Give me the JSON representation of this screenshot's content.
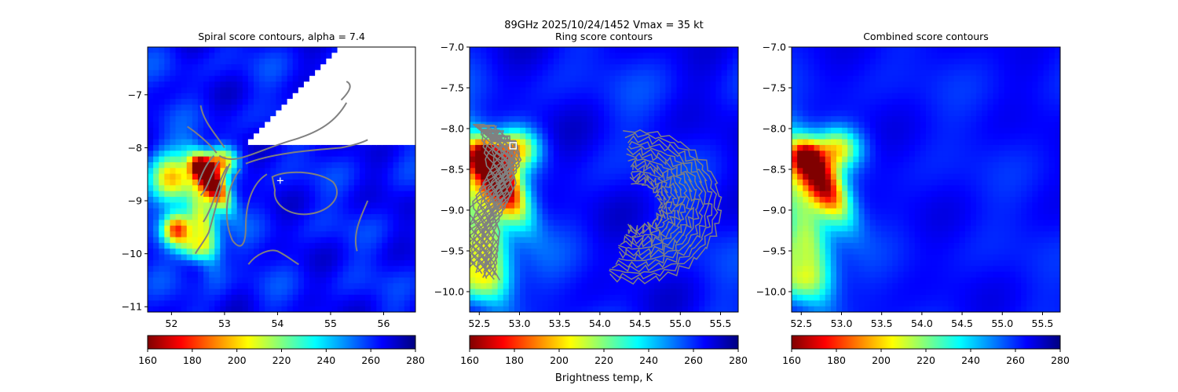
{
  "suptitle": "89GHz  2025/10/24/1452    Vmax = 35 kt",
  "colorbar_label": "Brightness temp, K",
  "colormap": [
    "#800000",
    "#ff0000",
    "#ff8000",
    "#ffff00",
    "#80ff80",
    "#00ffff",
    "#0080ff",
    "#0000ff",
    "#000080"
  ],
  "contour_color": "#808080",
  "chart_data": [
    {
      "type": "heatmap",
      "title": "Spiral score contours, alpha =  7.4",
      "xlim": [
        51.55,
        56.6
      ],
      "ylim": [
        -11.1,
        -6.1
      ],
      "xticks": [
        "52",
        "53",
        "54",
        "55",
        "56"
      ],
      "yticks": [
        "−7",
        "−8",
        "−9",
        "−10",
        "−11"
      ],
      "marker": {
        "symbol": "+",
        "x": 54.05,
        "y": -8.62
      },
      "colorbar": {
        "range": [
          160,
          280
        ],
        "ticks": [
          "160",
          "180",
          "200",
          "220",
          "240",
          "260",
          "280"
        ]
      }
    },
    {
      "type": "heatmap",
      "title": "Ring score contours",
      "xlim": [
        52.38,
        55.72
      ],
      "ylim": [
        -10.25,
        -7.0
      ],
      "xticks": [
        "52.5",
        "53.0",
        "53.5",
        "54.0",
        "54.5",
        "55.0",
        "55.5"
      ],
      "yticks": [
        "−7.0",
        "−7.5",
        "−8.0",
        "−8.5",
        "−9.0",
        "−9.5",
        "−10.0"
      ],
      "marker": {
        "symbol": "square",
        "x": 52.92,
        "y": -8.21
      },
      "colorbar": {
        "range": [
          160,
          280
        ],
        "ticks": [
          "160",
          "180",
          "200",
          "220",
          "240",
          "260",
          "280"
        ]
      }
    },
    {
      "type": "heatmap",
      "title": "Combined score contours",
      "xlim": [
        52.38,
        55.72
      ],
      "ylim": [
        -10.25,
        -7.0
      ],
      "xticks": [
        "52.5",
        "53.0",
        "53.5",
        "54.0",
        "54.5",
        "55.0",
        "55.5"
      ],
      "yticks": [
        "−7.0",
        "−7.5",
        "−8.0",
        "−8.5",
        "−9.0",
        "−9.5",
        "−10.0"
      ],
      "colorbar": {
        "range": [
          160,
          280
        ],
        "ticks": [
          "160",
          "180",
          "200",
          "220",
          "240",
          "260",
          "280"
        ]
      }
    }
  ]
}
